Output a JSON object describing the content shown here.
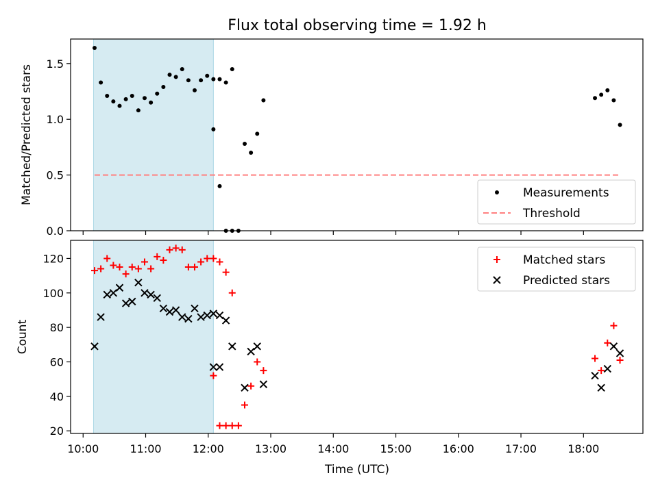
{
  "figure": {
    "title": "Flux total observing time = 1.92 h",
    "xlabel": "Time (UTC)",
    "x_tick_labels": [
      "10:00",
      "11:00",
      "12:00",
      "13:00",
      "14:00",
      "15:00",
      "16:00",
      "17:00",
      "18:00"
    ]
  },
  "chart_data": [
    {
      "type": "scatter",
      "panel": "top",
      "ylabel": "Matched/Predicted stars",
      "xlim": [
        "09:48",
        "18:57"
      ],
      "ylim": [
        0,
        1.72
      ],
      "y_ticks": [
        0.0,
        0.5,
        1.0,
        1.5
      ],
      "y_tick_labels": [
        "0.0",
        "0.5",
        "1.0",
        "1.5"
      ],
      "shaded_span": {
        "start": "10:10",
        "end": "12:05",
        "color": "#add8e6"
      },
      "legend_position": "lower right",
      "series": [
        {
          "name": "Measurements",
          "marker": "dot",
          "color": "#000000",
          "points": [
            [
              "10:11",
              1.64
            ],
            [
              "10:17",
              1.33
            ],
            [
              "10:23",
              1.21
            ],
            [
              "10:29",
              1.16
            ],
            [
              "10:35",
              1.12
            ],
            [
              "10:41",
              1.18
            ],
            [
              "10:47",
              1.21
            ],
            [
              "10:53",
              1.08
            ],
            [
              "10:59",
              1.19
            ],
            [
              "11:05",
              1.15
            ],
            [
              "11:11",
              1.23
            ],
            [
              "11:17",
              1.29
            ],
            [
              "11:23",
              1.4
            ],
            [
              "11:29",
              1.38
            ],
            [
              "11:35",
              1.45
            ],
            [
              "11:41",
              1.35
            ],
            [
              "11:47",
              1.26
            ],
            [
              "11:53",
              1.35
            ],
            [
              "11:59",
              1.39
            ],
            [
              "12:05",
              1.36
            ],
            [
              "12:11",
              1.36
            ],
            [
              "12:17",
              1.33
            ],
            [
              "12:23",
              1.45
            ],
            [
              "12:05",
              0.91
            ],
            [
              "12:11",
              0.4
            ],
            [
              "12:17",
              0.0
            ],
            [
              "12:23",
              0.0
            ],
            [
              "12:29",
              0.0
            ],
            [
              "12:35",
              0.78
            ],
            [
              "12:41",
              0.7
            ],
            [
              "12:47",
              0.87
            ],
            [
              "12:53",
              1.17
            ],
            [
              "18:11",
              1.19
            ],
            [
              "18:17",
              1.22
            ],
            [
              "18:23",
              1.26
            ],
            [
              "18:29",
              1.17
            ],
            [
              "18:35",
              0.95
            ]
          ]
        },
        {
          "name": "Threshold",
          "style": "dashed",
          "color": "#ff7f7f",
          "points": [
            [
              "10:11",
              0.5
            ],
            [
              "18:35",
              0.5
            ]
          ]
        }
      ]
    },
    {
      "type": "scatter",
      "panel": "bottom",
      "ylabel": "Count",
      "xlim": [
        "09:48",
        "18:57"
      ],
      "ylim": [
        18.5,
        130.5
      ],
      "y_ticks": [
        20,
        40,
        60,
        80,
        100,
        120
      ],
      "y_tick_labels": [
        "20",
        "40",
        "60",
        "80",
        "100",
        "120"
      ],
      "shaded_span": {
        "start": "10:10",
        "end": "12:05",
        "color": "#add8e6"
      },
      "legend_position": "upper right",
      "series": [
        {
          "name": "Matched stars",
          "marker": "plus",
          "color": "#ff0000",
          "points": [
            [
              "10:11",
              113
            ],
            [
              "10:17",
              114
            ],
            [
              "10:23",
              120
            ],
            [
              "10:29",
              116
            ],
            [
              "10:35",
              115
            ],
            [
              "10:41",
              111
            ],
            [
              "10:47",
              115
            ],
            [
              "10:53",
              114
            ],
            [
              "10:59",
              118
            ],
            [
              "11:05",
              114
            ],
            [
              "11:11",
              121
            ],
            [
              "11:17",
              119
            ],
            [
              "11:23",
              125
            ],
            [
              "11:29",
              126
            ],
            [
              "11:35",
              125
            ],
            [
              "11:41",
              115
            ],
            [
              "11:47",
              115
            ],
            [
              "11:53",
              118
            ],
            [
              "11:59",
              120
            ],
            [
              "12:05",
              120
            ],
            [
              "12:11",
              118
            ],
            [
              "12:17",
              112
            ],
            [
              "12:23",
              100
            ],
            [
              "12:05",
              52
            ],
            [
              "12:11",
              23
            ],
            [
              "12:17",
              23
            ],
            [
              "12:23",
              23
            ],
            [
              "12:29",
              23
            ],
            [
              "12:35",
              35
            ],
            [
              "12:41",
              46
            ],
            [
              "12:47",
              60
            ],
            [
              "12:53",
              55
            ],
            [
              "18:11",
              62
            ],
            [
              "18:17",
              55
            ],
            [
              "18:23",
              71
            ],
            [
              "18:29",
              81
            ],
            [
              "18:35",
              61
            ]
          ]
        },
        {
          "name": "Predicted stars",
          "marker": "x",
          "color": "#000000",
          "points": [
            [
              "10:11",
              69
            ],
            [
              "10:17",
              86
            ],
            [
              "10:23",
              99
            ],
            [
              "10:29",
              100
            ],
            [
              "10:35",
              103
            ],
            [
              "10:41",
              94
            ],
            [
              "10:47",
              95
            ],
            [
              "10:53",
              106
            ],
            [
              "10:59",
              100
            ],
            [
              "11:05",
              99
            ],
            [
              "11:11",
              97
            ],
            [
              "11:17",
              91
            ],
            [
              "11:23",
              89
            ],
            [
              "11:29",
              90
            ],
            [
              "11:35",
              86
            ],
            [
              "11:41",
              85
            ],
            [
              "11:47",
              91
            ],
            [
              "11:53",
              86
            ],
            [
              "11:59",
              87
            ],
            [
              "12:05",
              88
            ],
            [
              "12:11",
              87
            ],
            [
              "12:17",
              84
            ],
            [
              "12:23",
              69
            ],
            [
              "12:05",
              57
            ],
            [
              "12:11",
              57
            ],
            [
              "12:35",
              45
            ],
            [
              "12:41",
              66
            ],
            [
              "12:47",
              69
            ],
            [
              "12:53",
              47
            ],
            [
              "18:11",
              52
            ],
            [
              "18:17",
              45
            ],
            [
              "18:23",
              56
            ],
            [
              "18:29",
              69
            ],
            [
              "18:35",
              65
            ]
          ]
        }
      ]
    }
  ]
}
